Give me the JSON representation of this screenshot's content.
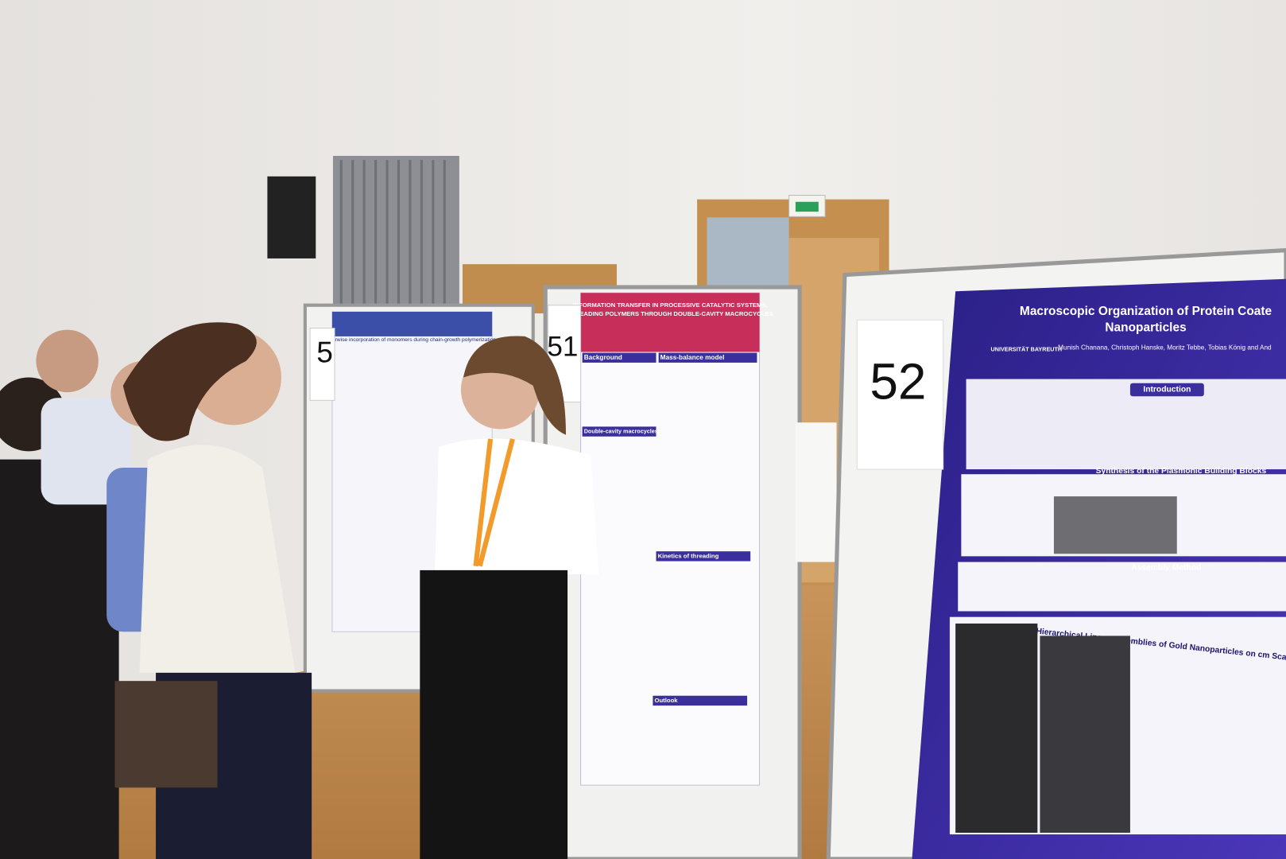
{
  "scene": {
    "poster_numbers": [
      "5",
      "51",
      "52"
    ],
    "posters": [
      {
        "title": "Pairwise incorporation of monomers during chain-growth polymerization"
      },
      {
        "title_lines": [
          "INFORMATION TRANSFER IN PROCESSIVE CATALYTIC SYSTEMS,",
          "THREADING POLYMERS THROUGH DOUBLE-CAVITY MACROCYCLES"
        ],
        "sections": [
          "Background",
          "Mass-balance model",
          "Double-cavity macrocycles",
          "Kinetics of threading",
          "Outlook"
        ]
      },
      {
        "title_lines": [
          "Macroscopic Organization of Protein Coate",
          "Nanoparticles"
        ],
        "institution": "UNIVERSITÄT BAYREUTH",
        "authors": "Munish Chanana, Christoph Hanske, Moritz Tebbe, Tobias König and And",
        "sections": [
          "Introduction",
          "Synthesis of the Plasmonic Building Blocks",
          "Assembly Method",
          "Hierarchical Linear Assemblies of Gold Nanoparticles on cm Scale"
        ]
      }
    ]
  }
}
